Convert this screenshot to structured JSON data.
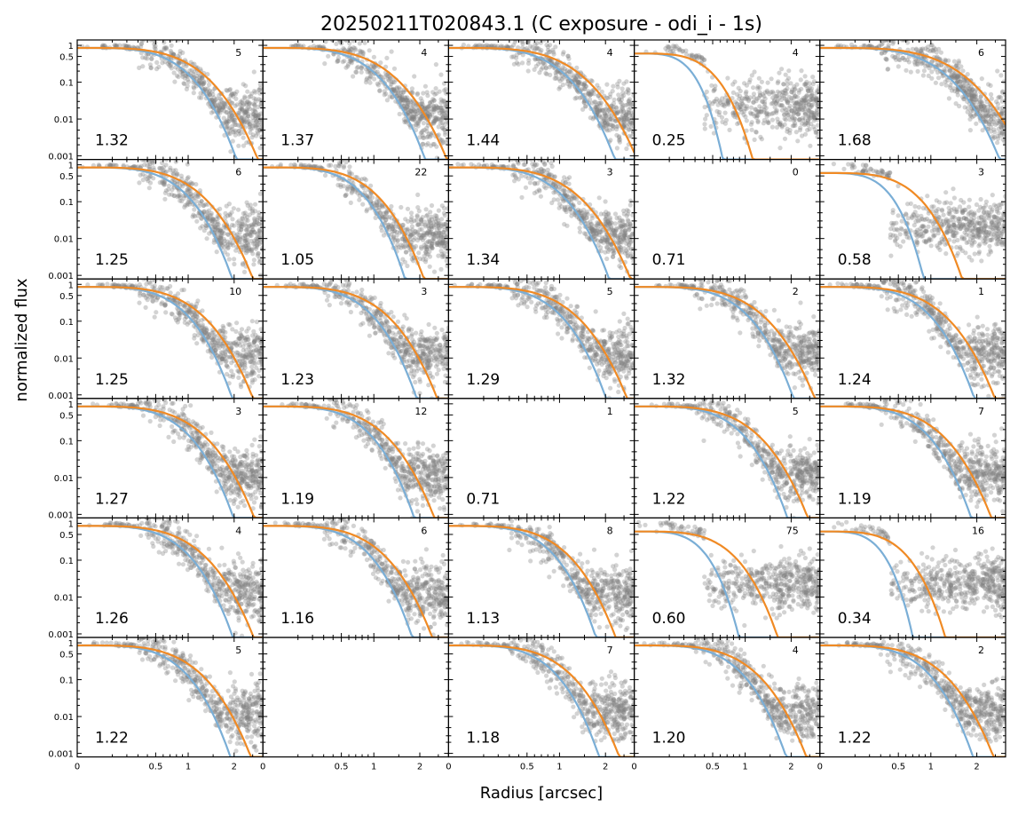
{
  "chart_data": {
    "type": "scatter",
    "title": "20250211T020843.1 (C exposure - odi_i - 1s)",
    "xlabel": "Radius [arcsec]",
    "ylabel": "normalized flux",
    "xscale": "sqrt",
    "yscale": "log",
    "xlim": [
      0,
      2.8
    ],
    "ylim": [
      0.0008,
      1.4
    ],
    "xticks": [
      "0",
      "0.5",
      "1",
      "2"
    ],
    "yticks": [
      "1",
      "0.5",
      "0.1",
      "0.01",
      "0.001"
    ],
    "grid": false,
    "layout": {
      "rows": 6,
      "cols": 5
    },
    "colors": {
      "points": "#808080",
      "fit_blue": "#7aaed6",
      "fit_orange": "#f08a24",
      "blue_dark": "#3f7fb0"
    },
    "series_names": [
      "data points",
      "blue profile",
      "orange profile"
    ],
    "panels": [
      {
        "row": 0,
        "col": 0,
        "fwhm": "1.32",
        "count": "5",
        "empty": false,
        "mode": "normal"
      },
      {
        "row": 0,
        "col": 1,
        "fwhm": "1.37",
        "count": "4",
        "empty": false,
        "mode": "normal"
      },
      {
        "row": 0,
        "col": 2,
        "fwhm": "1.44",
        "count": "4",
        "empty": false,
        "mode": "normal"
      },
      {
        "row": 0,
        "col": 3,
        "fwhm": "0.25",
        "count": "4",
        "empty": false,
        "mode": "weak"
      },
      {
        "row": 0,
        "col": 4,
        "fwhm": "1.68",
        "count": "6",
        "empty": false,
        "mode": "normal"
      },
      {
        "row": 1,
        "col": 0,
        "fwhm": "1.25",
        "count": "6",
        "empty": false,
        "mode": "normal"
      },
      {
        "row": 1,
        "col": 1,
        "fwhm": "1.05",
        "count": "22",
        "empty": false,
        "mode": "normal"
      },
      {
        "row": 1,
        "col": 2,
        "fwhm": "1.34",
        "count": "3",
        "empty": false,
        "mode": "normal"
      },
      {
        "row": 1,
        "col": 3,
        "fwhm": "0.71",
        "count": "0",
        "empty": true,
        "mode": "normal"
      },
      {
        "row": 1,
        "col": 4,
        "fwhm": "0.58",
        "count": "3",
        "empty": false,
        "mode": "weak"
      },
      {
        "row": 2,
        "col": 0,
        "fwhm": "1.25",
        "count": "10",
        "empty": false,
        "mode": "normal"
      },
      {
        "row": 2,
        "col": 1,
        "fwhm": "1.23",
        "count": "3",
        "empty": false,
        "mode": "normal"
      },
      {
        "row": 2,
        "col": 2,
        "fwhm": "1.29",
        "count": "5",
        "empty": false,
        "mode": "normal"
      },
      {
        "row": 2,
        "col": 3,
        "fwhm": "1.32",
        "count": "2",
        "empty": false,
        "mode": "normal"
      },
      {
        "row": 2,
        "col": 4,
        "fwhm": "1.24",
        "count": "1",
        "empty": false,
        "mode": "normal"
      },
      {
        "row": 3,
        "col": 0,
        "fwhm": "1.27",
        "count": "3",
        "empty": false,
        "mode": "normal"
      },
      {
        "row": 3,
        "col": 1,
        "fwhm": "1.19",
        "count": "12",
        "empty": false,
        "mode": "normal"
      },
      {
        "row": 3,
        "col": 2,
        "fwhm": "0.71",
        "count": "1",
        "empty": true,
        "mode": "normal"
      },
      {
        "row": 3,
        "col": 3,
        "fwhm": "1.22",
        "count": "5",
        "empty": false,
        "mode": "normal"
      },
      {
        "row": 3,
        "col": 4,
        "fwhm": "1.19",
        "count": "7",
        "empty": false,
        "mode": "normal"
      },
      {
        "row": 4,
        "col": 0,
        "fwhm": "1.26",
        "count": "4",
        "empty": false,
        "mode": "normal"
      },
      {
        "row": 4,
        "col": 1,
        "fwhm": "1.16",
        "count": "6",
        "empty": false,
        "mode": "normal"
      },
      {
        "row": 4,
        "col": 2,
        "fwhm": "1.13",
        "count": "8",
        "empty": false,
        "mode": "normal"
      },
      {
        "row": 4,
        "col": 3,
        "fwhm": "0.60",
        "count": "75",
        "empty": false,
        "mode": "weak"
      },
      {
        "row": 4,
        "col": 4,
        "fwhm": "0.34",
        "count": "16",
        "empty": false,
        "mode": "weak"
      },
      {
        "row": 5,
        "col": 0,
        "fwhm": "1.22",
        "count": "5",
        "empty": false,
        "mode": "normal"
      },
      {
        "row": 5,
        "col": 1,
        "fwhm": "",
        "count": "",
        "empty": true,
        "mode": "blank"
      },
      {
        "row": 5,
        "col": 2,
        "fwhm": "1.18",
        "count": "7",
        "empty": false,
        "mode": "normal"
      },
      {
        "row": 5,
        "col": 3,
        "fwhm": "1.20",
        "count": "4",
        "empty": false,
        "mode": "normal"
      },
      {
        "row": 5,
        "col": 4,
        "fwhm": "1.22",
        "count": "2",
        "empty": false,
        "mode": "normal"
      }
    ]
  }
}
